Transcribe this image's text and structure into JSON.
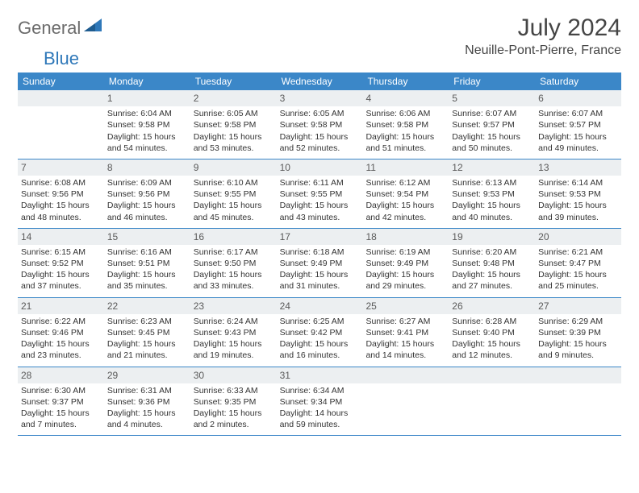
{
  "brand": {
    "part1": "General",
    "part2": "Blue"
  },
  "title": "July 2024",
  "location": "Neuille-Pont-Pierre, France",
  "colors": {
    "header_bg": "#3b87c8",
    "header_text": "#ffffff",
    "daynum_bg": "#eceff1",
    "daynum_text": "#5a5a5a",
    "border": "#3b87c8",
    "brand_gray": "#6b6b6b",
    "brand_blue": "#2f78b9"
  },
  "weekdays": [
    "Sunday",
    "Monday",
    "Tuesday",
    "Wednesday",
    "Thursday",
    "Friday",
    "Saturday"
  ],
  "weeks": [
    [
      null,
      {
        "n": "1",
        "sr": "6:04 AM",
        "ss": "9:58 PM",
        "dl": "15 hours and 54 minutes."
      },
      {
        "n": "2",
        "sr": "6:05 AM",
        "ss": "9:58 PM",
        "dl": "15 hours and 53 minutes."
      },
      {
        "n": "3",
        "sr": "6:05 AM",
        "ss": "9:58 PM",
        "dl": "15 hours and 52 minutes."
      },
      {
        "n": "4",
        "sr": "6:06 AM",
        "ss": "9:58 PM",
        "dl": "15 hours and 51 minutes."
      },
      {
        "n": "5",
        "sr": "6:07 AM",
        "ss": "9:57 PM",
        "dl": "15 hours and 50 minutes."
      },
      {
        "n": "6",
        "sr": "6:07 AM",
        "ss": "9:57 PM",
        "dl": "15 hours and 49 minutes."
      }
    ],
    [
      {
        "n": "7",
        "sr": "6:08 AM",
        "ss": "9:56 PM",
        "dl": "15 hours and 48 minutes."
      },
      {
        "n": "8",
        "sr": "6:09 AM",
        "ss": "9:56 PM",
        "dl": "15 hours and 46 minutes."
      },
      {
        "n": "9",
        "sr": "6:10 AM",
        "ss": "9:55 PM",
        "dl": "15 hours and 45 minutes."
      },
      {
        "n": "10",
        "sr": "6:11 AM",
        "ss": "9:55 PM",
        "dl": "15 hours and 43 minutes."
      },
      {
        "n": "11",
        "sr": "6:12 AM",
        "ss": "9:54 PM",
        "dl": "15 hours and 42 minutes."
      },
      {
        "n": "12",
        "sr": "6:13 AM",
        "ss": "9:53 PM",
        "dl": "15 hours and 40 minutes."
      },
      {
        "n": "13",
        "sr": "6:14 AM",
        "ss": "9:53 PM",
        "dl": "15 hours and 39 minutes."
      }
    ],
    [
      {
        "n": "14",
        "sr": "6:15 AM",
        "ss": "9:52 PM",
        "dl": "15 hours and 37 minutes."
      },
      {
        "n": "15",
        "sr": "6:16 AM",
        "ss": "9:51 PM",
        "dl": "15 hours and 35 minutes."
      },
      {
        "n": "16",
        "sr": "6:17 AM",
        "ss": "9:50 PM",
        "dl": "15 hours and 33 minutes."
      },
      {
        "n": "17",
        "sr": "6:18 AM",
        "ss": "9:49 PM",
        "dl": "15 hours and 31 minutes."
      },
      {
        "n": "18",
        "sr": "6:19 AM",
        "ss": "9:49 PM",
        "dl": "15 hours and 29 minutes."
      },
      {
        "n": "19",
        "sr": "6:20 AM",
        "ss": "9:48 PM",
        "dl": "15 hours and 27 minutes."
      },
      {
        "n": "20",
        "sr": "6:21 AM",
        "ss": "9:47 PM",
        "dl": "15 hours and 25 minutes."
      }
    ],
    [
      {
        "n": "21",
        "sr": "6:22 AM",
        "ss": "9:46 PM",
        "dl": "15 hours and 23 minutes."
      },
      {
        "n": "22",
        "sr": "6:23 AM",
        "ss": "9:45 PM",
        "dl": "15 hours and 21 minutes."
      },
      {
        "n": "23",
        "sr": "6:24 AM",
        "ss": "9:43 PM",
        "dl": "15 hours and 19 minutes."
      },
      {
        "n": "24",
        "sr": "6:25 AM",
        "ss": "9:42 PM",
        "dl": "15 hours and 16 minutes."
      },
      {
        "n": "25",
        "sr": "6:27 AM",
        "ss": "9:41 PM",
        "dl": "15 hours and 14 minutes."
      },
      {
        "n": "26",
        "sr": "6:28 AM",
        "ss": "9:40 PM",
        "dl": "15 hours and 12 minutes."
      },
      {
        "n": "27",
        "sr": "6:29 AM",
        "ss": "9:39 PM",
        "dl": "15 hours and 9 minutes."
      }
    ],
    [
      {
        "n": "28",
        "sr": "6:30 AM",
        "ss": "9:37 PM",
        "dl": "15 hours and 7 minutes."
      },
      {
        "n": "29",
        "sr": "6:31 AM",
        "ss": "9:36 PM",
        "dl": "15 hours and 4 minutes."
      },
      {
        "n": "30",
        "sr": "6:33 AM",
        "ss": "9:35 PM",
        "dl": "15 hours and 2 minutes."
      },
      {
        "n": "31",
        "sr": "6:34 AM",
        "ss": "9:34 PM",
        "dl": "14 hours and 59 minutes."
      },
      null,
      null,
      null
    ]
  ],
  "labels": {
    "sunrise_prefix": "Sunrise: ",
    "sunset_prefix": "Sunset: ",
    "daylight_prefix": "Daylight: "
  }
}
